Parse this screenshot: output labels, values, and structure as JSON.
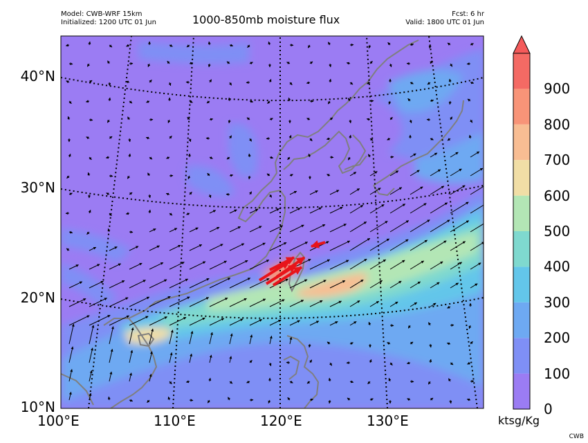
{
  "header": {
    "model": "Model: CWB-WRF 15km",
    "initialized": "Initialized: 1200 UTC 01 Jun",
    "title": "1000-850mb moisture flux",
    "fcst": "Fcst: 6 hr",
    "valid": "Valid: 1800 UTC 01 Jun"
  },
  "axes": {
    "lat_labels": [
      "10°N",
      "20°N",
      "30°N",
      "40°N"
    ],
    "lon_labels": [
      "100°E",
      "110°E",
      "120°E",
      "130°E"
    ]
  },
  "colorbar": {
    "ticks": [
      "0",
      "100",
      "200",
      "300",
      "400",
      "500",
      "600",
      "700",
      "800",
      "900"
    ],
    "colors": [
      "#9b7cf3",
      "#7f8ff5",
      "#6ea9f2",
      "#63c6ea",
      "#7fd9cf",
      "#b3e6b5",
      "#f1dea6",
      "#f8bd93",
      "#f89478",
      "#f46a64"
    ],
    "extend_color": "#f45a5a",
    "unit": "ktsg/Kg"
  },
  "credit": "CWB"
}
